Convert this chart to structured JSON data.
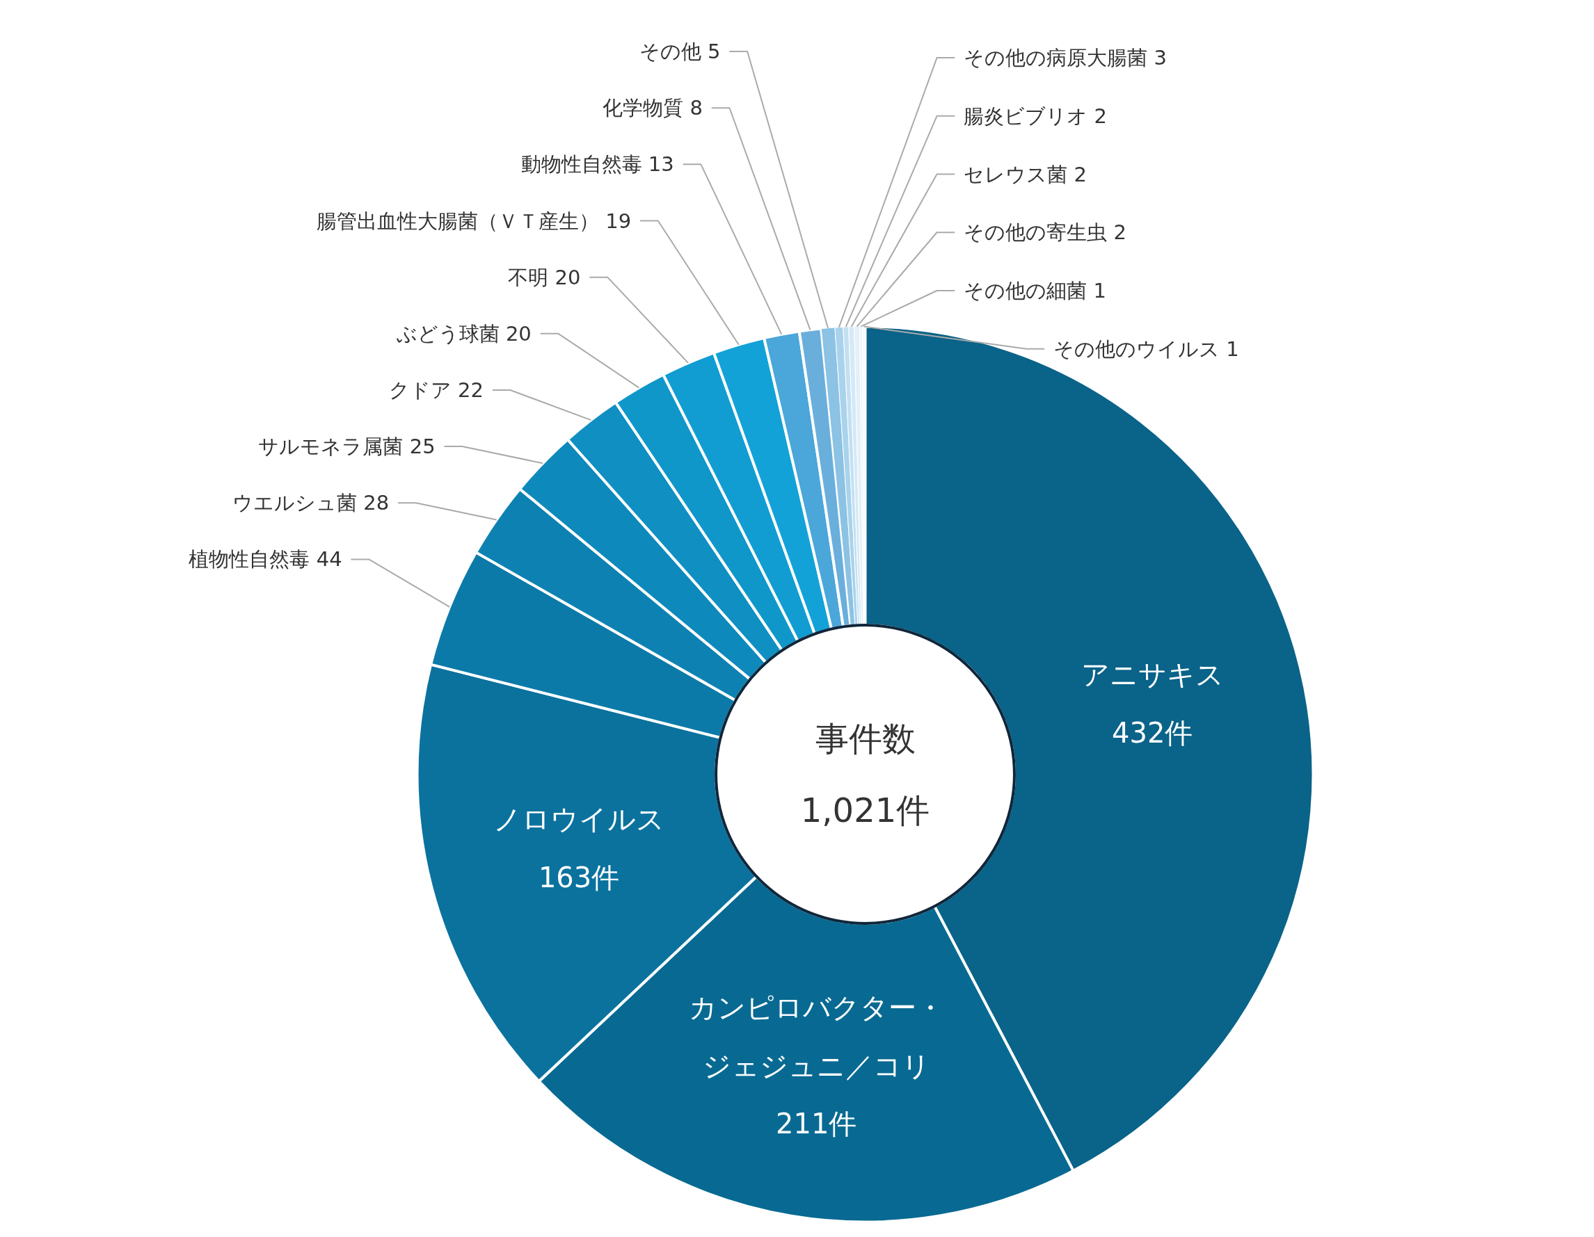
{
  "chart_data": {
    "type": "donut",
    "categories": [
      "アニサキス",
      "カンピロバクター・ジェジュニ／コリ",
      "ノロウイルス",
      "植物性自然毒",
      "ウエルシュ菌",
      "サルモネラ属菌",
      "クドア",
      "ぶどう球菌",
      "不明",
      "腸管出血性大腸菌（ＶＴ産生）",
      "動物性自然毒",
      "化学物質",
      "その他",
      "その他の病原大腸菌",
      "腸炎ビブリオ",
      "セレウス菌",
      "その他の寄生虫",
      "その他の細菌",
      "その他のウイルス"
    ],
    "values": [
      432,
      211,
      163,
      44,
      28,
      25,
      22,
      20,
      20,
      19,
      13,
      8,
      5,
      3,
      2,
      2,
      2,
      1,
      1
    ],
    "value_labels": [
      "432件",
      "211件",
      "163件",
      "44",
      "28",
      "25",
      "22",
      "20",
      "20",
      "19",
      "13",
      "8",
      "5",
      "3",
      "2",
      "2",
      "2",
      "1",
      "1"
    ],
    "colors": [
      "#0a6388",
      "#086a92",
      "#0b729e",
      "#0c7aa8",
      "#0d82b2",
      "#0e89bb",
      "#0f8fc2",
      "#1097ca",
      "#119dd2",
      "#13a2d8",
      "#4ba6d9",
      "#6aafdc",
      "#8cc2e4",
      "#a9d3ec",
      "#c3e0f2",
      "#d5e9f6",
      "#e3f0f8",
      "#eef6fb",
      "#f6fafd"
    ],
    "annotations": [
      "事件数",
      "1,021件"
    ]
  }
}
